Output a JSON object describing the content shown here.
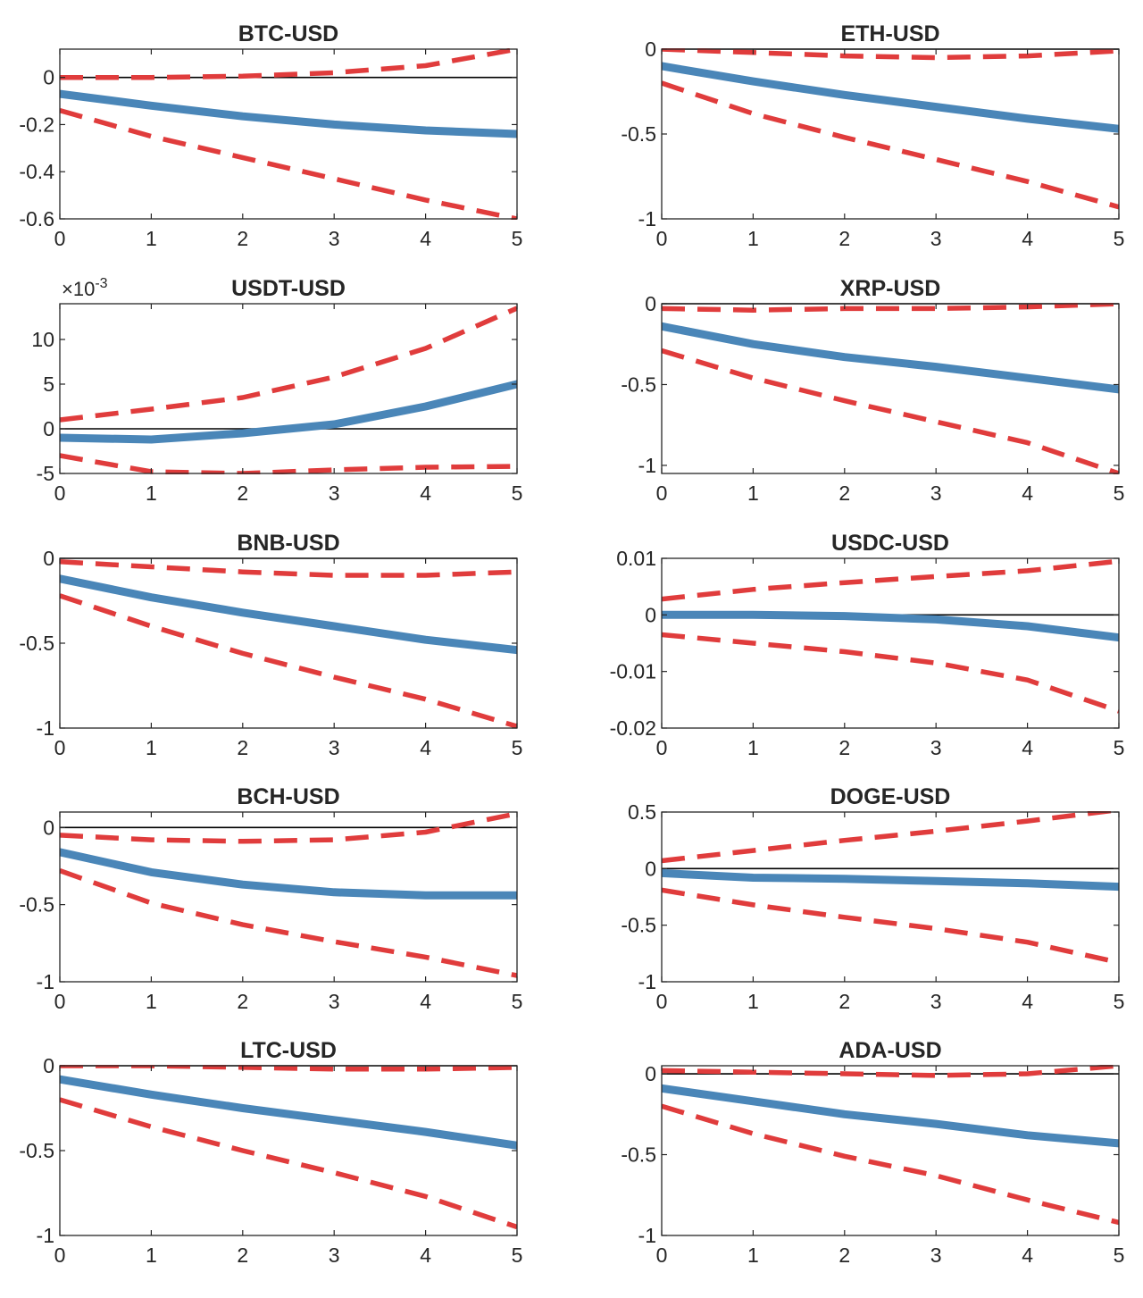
{
  "colors": {
    "estimate": "#4a86b8",
    "band": "#e03c3c",
    "axis": "#262626",
    "zero_line": "#000000"
  },
  "chart_data": [
    {
      "type": "line",
      "title": "BTC-USD",
      "x": [
        0,
        1,
        2,
        3,
        4,
        5
      ],
      "xlim": [
        0,
        5
      ],
      "ylim": [
        -0.6,
        0.12
      ],
      "yticks": [
        0,
        -0.2,
        -0.4,
        -0.6
      ],
      "ytick_labels": [
        "0",
        "-0.2",
        "-0.4",
        "-0.6"
      ],
      "series": [
        {
          "name": "response",
          "style": "solid",
          "values": [
            -0.07,
            -0.12,
            -0.165,
            -0.2,
            -0.225,
            -0.24
          ]
        },
        {
          "name": "upper band",
          "style": "dashed",
          "values": [
            0.0,
            0.0,
            0.005,
            0.02,
            0.05,
            0.12
          ]
        },
        {
          "name": "lower band",
          "style": "dashed",
          "values": [
            -0.14,
            -0.25,
            -0.34,
            -0.43,
            -0.52,
            -0.6
          ]
        }
      ]
    },
    {
      "type": "line",
      "title": "ETH-USD",
      "x": [
        0,
        1,
        2,
        3,
        4,
        5
      ],
      "xlim": [
        0,
        5
      ],
      "ylim": [
        -1,
        0
      ],
      "yticks": [
        0,
        -0.5,
        -1
      ],
      "ytick_labels": [
        "0",
        "-0.5",
        "-1"
      ],
      "series": [
        {
          "name": "response",
          "style": "solid",
          "values": [
            -0.1,
            -0.19,
            -0.27,
            -0.34,
            -0.41,
            -0.47
          ]
        },
        {
          "name": "upper band",
          "style": "dashed",
          "values": [
            0.0,
            -0.02,
            -0.04,
            -0.05,
            -0.04,
            -0.01
          ]
        },
        {
          "name": "lower band",
          "style": "dashed",
          "values": [
            -0.2,
            -0.38,
            -0.52,
            -0.65,
            -0.78,
            -0.93
          ]
        }
      ]
    },
    {
      "type": "line",
      "title": "USDT-USD",
      "exponent_label": "×10-3",
      "x": [
        0,
        1,
        2,
        3,
        4,
        5
      ],
      "xlim": [
        0,
        5
      ],
      "ylim": [
        -5,
        14
      ],
      "yticks": [
        10,
        5,
        0,
        -5
      ],
      "ytick_labels": [
        "10",
        "5",
        "0",
        "-5"
      ],
      "series": [
        {
          "name": "response",
          "style": "solid",
          "values": [
            -1.0,
            -1.2,
            -0.5,
            0.5,
            2.5,
            5.0
          ]
        },
        {
          "name": "upper band",
          "style": "dashed",
          "values": [
            1.0,
            2.2,
            3.5,
            5.8,
            9.0,
            13.5
          ]
        },
        {
          "name": "lower band",
          "style": "dashed",
          "values": [
            -3.0,
            -4.8,
            -5.0,
            -4.6,
            -4.3,
            -4.2
          ]
        }
      ]
    },
    {
      "type": "line",
      "title": "XRP-USD",
      "x": [
        0,
        1,
        2,
        3,
        4,
        5
      ],
      "xlim": [
        0,
        5
      ],
      "ylim": [
        -1.05,
        0
      ],
      "yticks": [
        0,
        -0.5,
        -1
      ],
      "ytick_labels": [
        "0",
        "-0.5",
        "-1"
      ],
      "series": [
        {
          "name": "response",
          "style": "solid",
          "values": [
            -0.14,
            -0.25,
            -0.33,
            -0.39,
            -0.46,
            -0.53
          ]
        },
        {
          "name": "upper band",
          "style": "dashed",
          "values": [
            -0.03,
            -0.04,
            -0.03,
            -0.03,
            -0.02,
            0.0
          ]
        },
        {
          "name": "lower band",
          "style": "dashed",
          "values": [
            -0.29,
            -0.46,
            -0.6,
            -0.73,
            -0.86,
            -1.05
          ]
        }
      ]
    },
    {
      "type": "line",
      "title": "BNB-USD",
      "x": [
        0,
        1,
        2,
        3,
        4,
        5
      ],
      "xlim": [
        0,
        5
      ],
      "ylim": [
        -1,
        0
      ],
      "yticks": [
        0,
        -0.5,
        -1
      ],
      "ytick_labels": [
        "0",
        "-0.5",
        "-1"
      ],
      "series": [
        {
          "name": "response",
          "style": "solid",
          "values": [
            -0.12,
            -0.23,
            -0.32,
            -0.4,
            -0.48,
            -0.54
          ]
        },
        {
          "name": "upper band",
          "style": "dashed",
          "values": [
            -0.02,
            -0.05,
            -0.08,
            -0.1,
            -0.1,
            -0.08
          ]
        },
        {
          "name": "lower band",
          "style": "dashed",
          "values": [
            -0.22,
            -0.4,
            -0.56,
            -0.7,
            -0.83,
            -0.99
          ]
        }
      ]
    },
    {
      "type": "line",
      "title": "USDC-USD",
      "x": [
        0,
        1,
        2,
        3,
        4,
        5
      ],
      "xlim": [
        0,
        5
      ],
      "ylim": [
        -0.02,
        0.01
      ],
      "yticks": [
        0.01,
        0,
        -0.01,
        -0.02
      ],
      "ytick_labels": [
        "0.01",
        "0",
        "-0.01",
        "-0.02"
      ],
      "series": [
        {
          "name": "response",
          "style": "solid",
          "values": [
            0.0,
            0.0,
            -0.0002,
            -0.0008,
            -0.002,
            -0.004
          ]
        },
        {
          "name": "upper band",
          "style": "dashed",
          "values": [
            0.0028,
            0.0045,
            0.0057,
            0.0068,
            0.0078,
            0.0095
          ]
        },
        {
          "name": "lower band",
          "style": "dashed",
          "values": [
            -0.0035,
            -0.005,
            -0.0065,
            -0.0085,
            -0.0115,
            -0.017
          ]
        }
      ]
    },
    {
      "type": "line",
      "title": "BCH-USD",
      "x": [
        0,
        1,
        2,
        3,
        4,
        5
      ],
      "xlim": [
        0,
        5
      ],
      "ylim": [
        -1,
        0.1
      ],
      "yticks": [
        0,
        -0.5,
        -1
      ],
      "ytick_labels": [
        "0",
        "-0.5",
        "-1"
      ],
      "series": [
        {
          "name": "response",
          "style": "solid",
          "values": [
            -0.16,
            -0.29,
            -0.37,
            -0.42,
            -0.44,
            -0.44
          ]
        },
        {
          "name": "upper band",
          "style": "dashed",
          "values": [
            -0.05,
            -0.08,
            -0.09,
            -0.08,
            -0.03,
            0.09
          ]
        },
        {
          "name": "lower band",
          "style": "dashed",
          "values": [
            -0.28,
            -0.49,
            -0.63,
            -0.74,
            -0.84,
            -0.96
          ]
        }
      ]
    },
    {
      "type": "line",
      "title": "DOGE-USD",
      "x": [
        0,
        1,
        2,
        3,
        4,
        5
      ],
      "xlim": [
        0,
        5
      ],
      "ylim": [
        -1,
        0.5
      ],
      "yticks": [
        0.5,
        0,
        -0.5,
        -1
      ],
      "ytick_labels": [
        "0.5",
        "0",
        "-0.5",
        "-1"
      ],
      "series": [
        {
          "name": "response",
          "style": "solid",
          "values": [
            -0.04,
            -0.08,
            -0.09,
            -0.11,
            -0.13,
            -0.16
          ]
        },
        {
          "name": "upper band",
          "style": "dashed",
          "values": [
            0.07,
            0.16,
            0.25,
            0.33,
            0.42,
            0.52
          ]
        },
        {
          "name": "lower band",
          "style": "dashed",
          "values": [
            -0.19,
            -0.32,
            -0.43,
            -0.53,
            -0.65,
            -0.83
          ]
        }
      ]
    },
    {
      "type": "line",
      "title": "LTC-USD",
      "x": [
        0,
        1,
        2,
        3,
        4,
        5
      ],
      "xlim": [
        0,
        5
      ],
      "ylim": [
        -1,
        0
      ],
      "yticks": [
        0,
        -0.5,
        -1
      ],
      "ytick_labels": [
        "0",
        "-0.5",
        "-1"
      ],
      "series": [
        {
          "name": "response",
          "style": "solid",
          "values": [
            -0.08,
            -0.17,
            -0.25,
            -0.32,
            -0.39,
            -0.47
          ]
        },
        {
          "name": "upper band",
          "style": "dashed",
          "values": [
            0.0,
            0.0,
            -0.01,
            -0.02,
            -0.02,
            -0.01
          ]
        },
        {
          "name": "lower band",
          "style": "dashed",
          "values": [
            -0.2,
            -0.36,
            -0.5,
            -0.63,
            -0.77,
            -0.95
          ]
        }
      ]
    },
    {
      "type": "line",
      "title": "ADA-USD",
      "x": [
        0,
        1,
        2,
        3,
        4,
        5
      ],
      "xlim": [
        0,
        5
      ],
      "ylim": [
        -1,
        0.05
      ],
      "yticks": [
        0,
        -0.5,
        -1
      ],
      "ytick_labels": [
        "0",
        "-0.5",
        "-1"
      ],
      "series": [
        {
          "name": "response",
          "style": "solid",
          "values": [
            -0.09,
            -0.17,
            -0.25,
            -0.31,
            -0.38,
            -0.43
          ]
        },
        {
          "name": "upper band",
          "style": "dashed",
          "values": [
            0.02,
            0.01,
            0.0,
            -0.01,
            0.0,
            0.05
          ]
        },
        {
          "name": "lower band",
          "style": "dashed",
          "values": [
            -0.2,
            -0.37,
            -0.51,
            -0.63,
            -0.78,
            -0.92
          ]
        }
      ]
    }
  ]
}
